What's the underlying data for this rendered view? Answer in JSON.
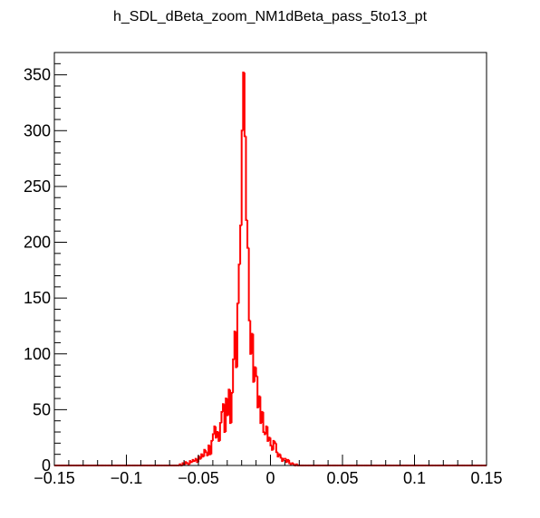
{
  "chart_data": {
    "type": "histogram",
    "title": "h_SDL_dBeta_zoom_NM1dBeta_pass_5to13_pt",
    "xlabel": "",
    "ylabel": "",
    "xlim": [
      -0.15,
      0.15
    ],
    "ylim": [
      0,
      370
    ],
    "x_ticks": [
      -0.15,
      -0.1,
      -0.05,
      0,
      0.05,
      0.1,
      0.15
    ],
    "x_tick_labels": [
      "−0.15",
      "−0.1",
      "−0.05",
      "0",
      "0.05",
      "0.1",
      "0.15"
    ],
    "y_ticks": [
      0,
      50,
      100,
      150,
      200,
      250,
      300,
      350
    ],
    "y_tick_labels": [
      "0",
      "50",
      "100",
      "150",
      "200",
      "250",
      "300",
      "350"
    ],
    "grid": false,
    "legend": "none",
    "line_color": "#ff0000",
    "series": [
      {
        "bin_edges_start": -0.15,
        "bin_width": 0.001,
        "values": [
          0,
          0,
          0,
          0,
          0,
          0,
          0,
          0,
          0,
          0,
          0,
          0,
          0,
          0,
          0,
          0,
          0,
          0,
          0,
          0,
          0,
          0,
          0,
          0,
          0,
          0,
          0,
          0,
          0,
          0,
          0,
          0,
          0,
          0,
          0,
          0,
          0,
          0,
          0,
          0,
          0,
          0,
          0,
          0,
          0,
          0,
          0,
          0,
          0,
          0,
          0,
          0,
          0,
          0,
          0,
          0,
          0,
          0,
          0,
          0,
          0,
          0,
          0,
          0,
          0,
          0,
          0,
          0,
          0,
          0,
          0,
          0,
          0,
          0,
          0,
          0,
          0,
          0,
          0,
          0,
          0,
          0,
          0,
          0,
          0,
          0,
          0,
          1,
          0,
          2,
          1,
          3,
          2,
          1,
          4,
          3,
          5,
          4,
          6,
          3,
          8,
          6,
          10,
          8,
          14,
          12,
          9,
          18,
          10,
          22,
          28,
          35,
          25,
          30,
          22,
          38,
          48,
          55,
          30,
          60,
          45,
          68,
          38,
          65,
          95,
          120,
          88,
          145,
          180,
          215,
          300,
          352,
          295,
          220,
          195,
          130,
          100,
          118,
          75,
          88,
          80,
          52,
          62,
          38,
          48,
          30,
          28,
          35,
          22,
          25,
          18,
          14,
          22,
          20,
          12,
          8,
          10,
          7,
          4,
          6,
          6,
          3,
          5,
          2,
          1,
          2,
          1,
          0,
          1,
          0,
          0,
          0,
          0,
          0,
          0,
          0,
          0,
          0,
          0,
          0,
          0,
          0,
          0,
          0,
          0,
          0,
          0,
          0,
          0,
          0,
          0,
          0,
          0,
          0,
          0,
          0,
          0,
          0,
          0,
          0,
          0,
          0,
          0,
          0,
          0,
          0,
          0,
          0,
          0,
          0,
          0,
          0,
          0,
          0,
          0,
          0,
          0,
          0,
          0,
          0,
          0,
          0,
          0,
          0,
          0,
          0,
          0,
          0,
          0,
          0,
          0,
          0,
          0,
          0,
          0,
          0,
          0,
          0,
          0,
          0,
          0,
          0,
          0,
          0,
          0,
          0,
          0,
          0,
          0,
          0,
          0,
          0,
          0,
          0,
          0,
          0,
          0,
          0,
          0,
          0,
          0,
          0,
          0,
          0,
          0,
          0,
          0,
          0,
          0,
          0,
          0,
          0,
          0,
          0,
          0,
          0,
          0,
          0,
          0,
          0,
          0,
          0,
          0,
          0,
          0,
          0,
          0,
          0,
          0,
          0,
          0,
          0,
          0,
          0,
          0,
          0,
          0,
          0,
          0,
          0
        ]
      }
    ]
  }
}
